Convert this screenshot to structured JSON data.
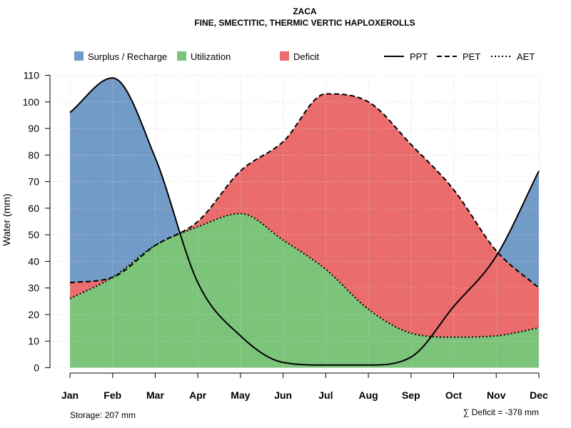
{
  "chart_data": {
    "type": "area",
    "title": "ZACA",
    "subtitle": "FINE, SMECTITIC, THERMIC VERTIC HAPLOXEROLLS",
    "xlabel": "",
    "ylabel": "Water (mm)",
    "ylim": [
      0,
      110
    ],
    "yticks": [
      0,
      10,
      20,
      30,
      40,
      50,
      60,
      70,
      80,
      90,
      100,
      110
    ],
    "grid": true,
    "categories": [
      "Jan",
      "Feb",
      "Mar",
      "Apr",
      "May",
      "Jun",
      "Jul",
      "Aug",
      "Sep",
      "Oct",
      "Nov",
      "Dec"
    ],
    "series": [
      {
        "name": "PPT",
        "style": "solid",
        "color": "#000000",
        "values": [
          96,
          109,
          79,
          32,
          12,
          2,
          1,
          1,
          4,
          23,
          42,
          74
        ]
      },
      {
        "name": "PET",
        "style": "dashed",
        "color": "#000000",
        "values": [
          32,
          34,
          46,
          55,
          74,
          85,
          103,
          100,
          84,
          67,
          44,
          30
        ]
      },
      {
        "name": "AET",
        "style": "dotted",
        "color": "#000000",
        "values": [
          26,
          34,
          46,
          53,
          58,
          48,
          37,
          22,
          13,
          11.5,
          12,
          15
        ]
      }
    ],
    "areas": [
      {
        "name": "Surplus / Recharge",
        "color": "#729bc8"
      },
      {
        "name": "Utilization",
        "color": "#7cc47a"
      },
      {
        "name": "Deficit",
        "color": "#ea6c6c"
      }
    ],
    "legend": {
      "position": "top",
      "areas": [
        "Surplus / Recharge",
        "Utilization",
        "Deficit"
      ],
      "lines": [
        "PPT",
        "PET",
        "AET"
      ]
    },
    "annotations": {
      "storage": "Storage: 207 mm",
      "deficit": "∑ Deficit = -378 mm"
    }
  }
}
